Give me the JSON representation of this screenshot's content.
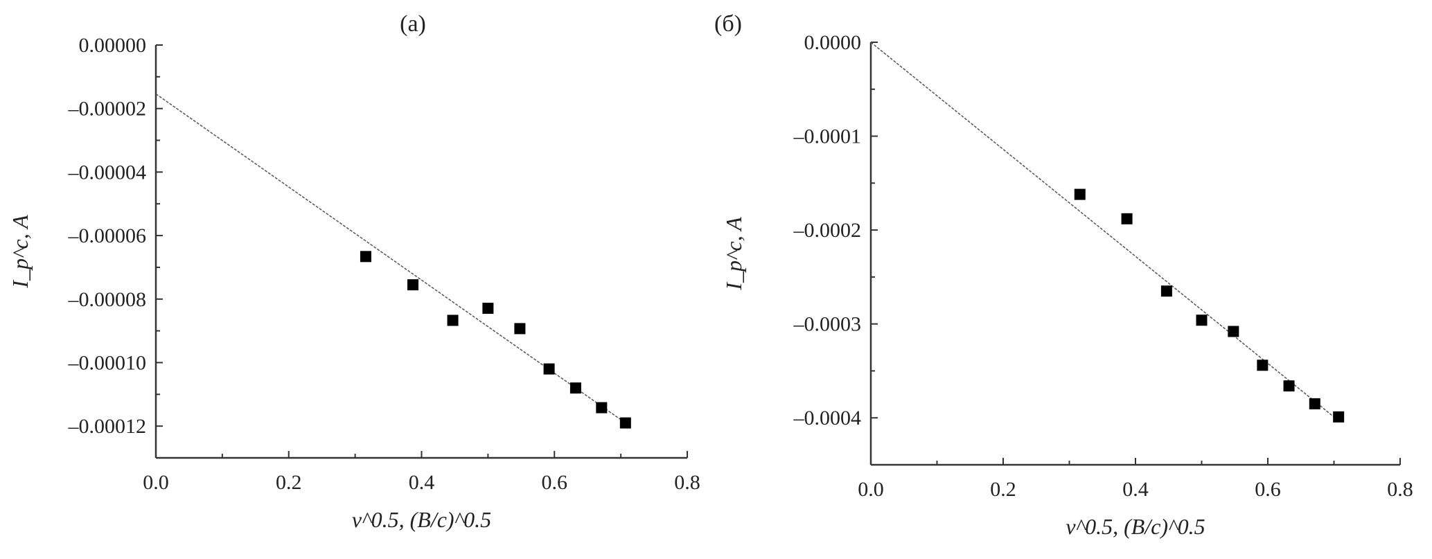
{
  "chart_data": [
    {
      "type": "scatter",
      "title": "(a)",
      "xlabel": "v^0.5, (B/c)^0.5",
      "ylabel": "I_p^c, A",
      "xlim": [
        0.0,
        0.8
      ],
      "ylim": [
        -0.00013,
        0.0
      ],
      "x_ticks": [
        "0.0",
        "0.2",
        "0.4",
        "0.6",
        "0.8"
      ],
      "y_ticks": [
        "0.00000",
        "–0.00002",
        "–0.00004",
        "–0.00006",
        "–0.00008",
        "–0.00010",
        "–0.00012"
      ],
      "grid": false,
      "marker": "square",
      "x": [
        0.316,
        0.387,
        0.447,
        0.5,
        0.548,
        0.592,
        0.632,
        0.671,
        0.707
      ],
      "y": [
        -6.66e-05,
        -7.55e-05,
        -8.67e-05,
        -8.29e-05,
        -8.93e-05,
        -0.000102,
        -0.000108,
        -0.0001142,
        -0.000119
      ],
      "fit_line": {
        "style": "dashed",
        "x": [
          0.0,
          0.707
        ],
        "y": [
          -1.54e-05,
          -0.000119
        ]
      }
    },
    {
      "type": "scatter",
      "title": "(б)",
      "xlabel": "v^0.5, (B/c)^0.5",
      "ylabel": "I_p^c, A",
      "xlim": [
        0.0,
        0.8
      ],
      "ylim": [
        -0.00045,
        0.0
      ],
      "x_ticks": [
        "0.0",
        "0.2",
        "0.4",
        "0.6",
        "0.8"
      ],
      "y_ticks": [
        "0.0000",
        "–0.0001",
        "–0.0002",
        "–0.0003",
        "–0.0004"
      ],
      "grid": false,
      "marker": "square",
      "x": [
        0.316,
        0.387,
        0.447,
        0.5,
        0.548,
        0.592,
        0.632,
        0.671,
        0.707
      ],
      "y": [
        -0.000162,
        -0.000188,
        -0.000265,
        -0.000296,
        -0.000308,
        -0.000344,
        -0.000366,
        -0.000385,
        -0.000399
      ],
      "fit_line": {
        "style": "dashed",
        "x": [
          0.0,
          0.707
        ],
        "y": [
          0.0,
          -0.000403
        ]
      }
    }
  ]
}
